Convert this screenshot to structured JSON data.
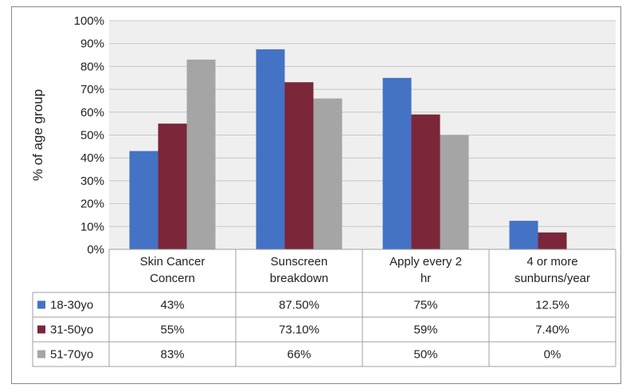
{
  "chart_data": {
    "type": "bar",
    "title": "",
    "xlabel": "",
    "ylabel": "% of age group",
    "ylim": [
      0,
      100
    ],
    "yticks": [
      "0%",
      "10%",
      "20%",
      "30%",
      "40%",
      "50%",
      "60%",
      "70%",
      "80%",
      "90%",
      "100%"
    ],
    "categories": [
      [
        "Skin Cancer",
        "Concern"
      ],
      [
        "Sunscreen",
        "breakdown"
      ],
      [
        "Apply every 2",
        "hr"
      ],
      [
        "4 or more",
        "sunburns/year"
      ]
    ],
    "series": [
      {
        "name": "18-30yo",
        "color": "#4472C4",
        "values": [
          43,
          87.5,
          75,
          12.5
        ],
        "labels": [
          "43%",
          "87.50%",
          "75%",
          "12.5%"
        ]
      },
      {
        "name": "31-50yo",
        "color": "#7B2639",
        "values": [
          55,
          73.1,
          59,
          7.4
        ],
        "labels": [
          "55%",
          "73.10%",
          "59%",
          "7.40%"
        ]
      },
      {
        "name": "51-70yo",
        "color": "#A5A5A5",
        "values": [
          83,
          66,
          50,
          0
        ],
        "labels": [
          "83%",
          "66%",
          "50%",
          "0%"
        ]
      }
    ],
    "grid": true,
    "legend": "data-table"
  }
}
